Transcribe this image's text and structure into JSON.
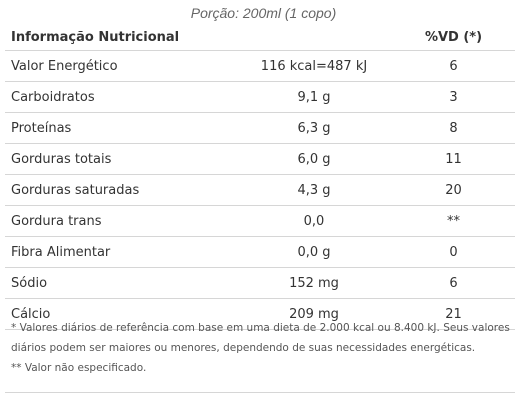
{
  "portion": "Porção: 200ml (1 copo)",
  "table": {
    "headers": [
      "Informação Nutricional",
      "",
      "%VD (*)"
    ],
    "rows": [
      {
        "name": "Valor Energético",
        "quantity": "116 kcal=487 kJ",
        "vd": "6"
      },
      {
        "name": "Carboidratos",
        "quantity": "9,1 g",
        "vd": "3"
      },
      {
        "name": "Proteínas",
        "quantity": "6,3 g",
        "vd": "8"
      },
      {
        "name": "Gorduras totais",
        "quantity": "6,0 g",
        "vd": "11"
      },
      {
        "name": "Gorduras saturadas",
        "quantity": "4,3 g",
        "vd": "20"
      },
      {
        "name": "Gordura trans",
        "quantity": "0,0",
        "vd": "**"
      },
      {
        "name": "Fibra Alimentar",
        "quantity": "0,0 g",
        "vd": "0"
      },
      {
        "name": "Sódio",
        "quantity": "152 mg",
        "vd": "6"
      },
      {
        "name": "Cálcio",
        "quantity": "209 mg",
        "vd": "21"
      }
    ]
  },
  "footnotes": [
    "* Valores diários de referência com base em uma dieta de 2.000 kcal ou 8.400 kJ. Seus valores diários podem ser maiores ou menores, dependendo de suas necessidades energéticas.",
    "** Valor não especificado."
  ]
}
